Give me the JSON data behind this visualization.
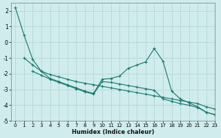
{
  "background_color": "#d0ecec",
  "grid_color": "#b8dada",
  "line_color": "#1a7a6e",
  "xlabel": "Humidex (Indice chaleur)",
  "xlim": [
    -0.5,
    23
  ],
  "ylim": [
    -5,
    2.5
  ],
  "yticks": [
    -5,
    -4,
    -3,
    -2,
    -1,
    0,
    1,
    2
  ],
  "xticks": [
    0,
    1,
    2,
    3,
    4,
    5,
    6,
    7,
    8,
    9,
    10,
    11,
    12,
    13,
    14,
    15,
    16,
    17,
    18,
    19,
    20,
    21,
    22,
    23
  ],
  "series": [
    {
      "x": [
        0,
        1,
        2,
        3,
        4,
        5,
        6,
        7,
        8,
        9,
        10,
        11,
        12,
        13,
        14,
        15,
        16,
        17,
        18,
        19,
        20,
        21,
        22,
        23
      ],
      "y": [
        2.2,
        0.45,
        -1.1,
        -1.85,
        -2.3,
        -2.5,
        -2.7,
        -2.9,
        -3.1,
        -3.25,
        -2.35,
        -2.3,
        -2.15,
        -1.65,
        -1.45,
        -1.25,
        -0.4,
        -1.2,
        -3.1,
        -3.6,
        -3.85,
        -4.1,
        -4.45,
        -4.6
      ]
    },
    {
      "x": [
        1,
        2,
        3,
        4,
        5,
        6,
        7,
        8,
        9,
        10,
        11,
        12,
        13,
        14,
        15,
        16,
        17,
        18,
        19,
        20,
        21,
        22,
        23
      ],
      "y": [
        -1.0,
        -1.45,
        -1.85,
        -2.05,
        -2.2,
        -2.35,
        -2.5,
        -2.6,
        -2.7,
        -2.8,
        -2.9,
        -3.0,
        -3.1,
        -3.2,
        -3.3,
        -3.4,
        -3.5,
        -3.6,
        -3.7,
        -3.8,
        -3.9,
        -4.1,
        -4.25
      ]
    },
    {
      "x": [
        2,
        3,
        4,
        5,
        6,
        7,
        8,
        9,
        10,
        11,
        12,
        13,
        14,
        15,
        16,
        17,
        18,
        19,
        20,
        21,
        22,
        23
      ],
      "y": [
        -1.85,
        -2.1,
        -2.35,
        -2.55,
        -2.75,
        -2.95,
        -3.15,
        -3.3,
        -2.5,
        -2.55,
        -2.65,
        -2.75,
        -2.85,
        -2.95,
        -3.05,
        -3.6,
        -3.75,
        -3.9,
        -4.0,
        -4.15,
        -4.45,
        -4.6
      ]
    }
  ]
}
